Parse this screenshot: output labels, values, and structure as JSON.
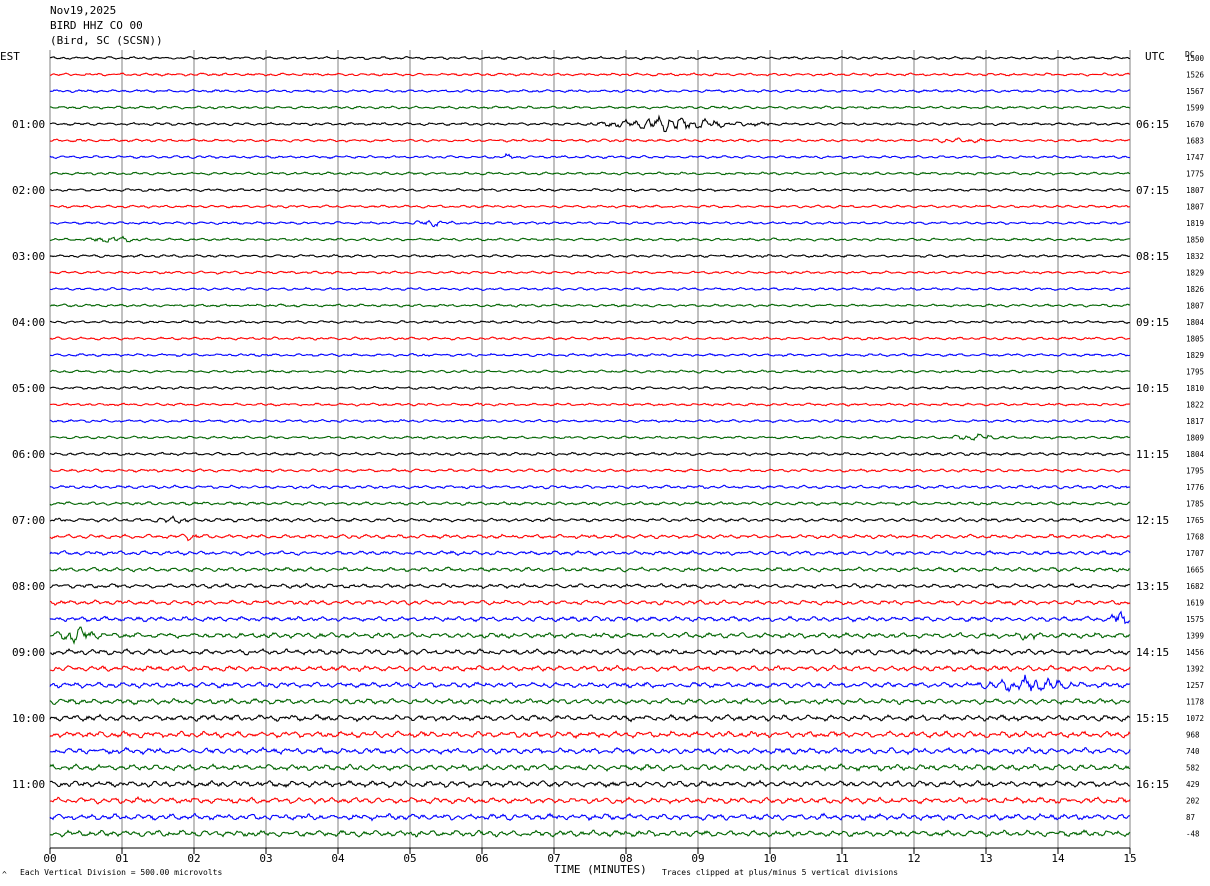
{
  "header": {
    "date": "Nov19,2025",
    "station": "BIRD HHZ CO 00",
    "location": "(Bird, SC (SCSN))"
  },
  "left_axis_label": "EST",
  "right_axis_label": "UTC",
  "dc_label": "DC",
  "footer": {
    "scale_note": "Each Vertical Division =  500.00 microvolts",
    "xlabel": "TIME (MINUTES)",
    "clip_note": "Traces clipped at plus/minus 5 vertical divisions",
    "corner_mark": "^"
  },
  "colors": {
    "trace_cycle": [
      "#000000",
      "#ff0000",
      "#0000ff",
      "#006400"
    ],
    "gridline": "#808080"
  },
  "chart_data": {
    "type": "line",
    "title": "",
    "xlabel": "TIME (MINUTES)",
    "xlim": [
      0,
      15
    ],
    "x_ticks": [
      "00",
      "01",
      "02",
      "03",
      "04",
      "05",
      "06",
      "07",
      "08",
      "09",
      "10",
      "11",
      "12",
      "13",
      "14",
      "15"
    ],
    "left_hour_labels": [
      "01:00",
      "02:00",
      "03:00",
      "04:00",
      "05:00",
      "06:00",
      "07:00",
      "08:00",
      "09:00",
      "10:00",
      "11:00"
    ],
    "right_hour_labels": [
      "06:15",
      "07:15",
      "08:15",
      "09:15",
      "10:15",
      "11:15",
      "12:15",
      "13:15",
      "14:15",
      "15:15",
      "16:15"
    ],
    "trace_count": 48,
    "traces_per_hour": 4,
    "dc_offsets": [
      1500,
      1526,
      1567,
      1599,
      1670,
      1683,
      1747,
      1775,
      1807,
      1807,
      1819,
      1850,
      1832,
      1829,
      1826,
      1807,
      1804,
      1805,
      1829,
      1795,
      1810,
      1822,
      1817,
      1809,
      1804,
      1795,
      1776,
      1785,
      1765,
      1768,
      1707,
      1665,
      1682,
      1619,
      1575,
      1399,
      1456,
      1392,
      1257,
      1178,
      1072,
      968,
      740,
      582,
      429,
      202,
      87,
      -48
    ],
    "noise_level": [
      0.45,
      0.45,
      0.45,
      0.45,
      0.45,
      0.45,
      0.45,
      0.45,
      0.45,
      0.45,
      0.45,
      0.45,
      0.45,
      0.45,
      0.45,
      0.45,
      0.45,
      0.45,
      0.45,
      0.45,
      0.45,
      0.45,
      0.45,
      0.45,
      0.5,
      0.5,
      0.55,
      0.55,
      0.6,
      0.65,
      0.7,
      0.7,
      0.7,
      0.75,
      0.8,
      0.9,
      0.9,
      0.9,
      0.9,
      0.9,
      1.0,
      1.0,
      1.0,
      1.0,
      1.0,
      1.0,
      1.0,
      1.0
    ],
    "events": [
      {
        "trace": 4,
        "start_min": 7.5,
        "end_min": 10.0,
        "peak_amp": 3.0,
        "center_min": 8.6
      },
      {
        "trace": 5,
        "start_min": 11.8,
        "end_min": 13.5,
        "peak_amp": 1.0,
        "center_min": 12.6
      },
      {
        "trace": 6,
        "start_min": 6.2,
        "end_min": 6.5,
        "peak_amp": 1.2,
        "center_min": 6.35
      },
      {
        "trace": 10,
        "start_min": 5.0,
        "end_min": 5.9,
        "peak_amp": 1.5,
        "center_min": 5.3
      },
      {
        "trace": 11,
        "start_min": 0.4,
        "end_min": 1.6,
        "peak_amp": 1.4,
        "center_min": 0.9
      },
      {
        "trace": 21,
        "start_min": 5.9,
        "end_min": 6.2,
        "peak_amp": 1.0,
        "center_min": 6.0
      },
      {
        "trace": 23,
        "start_min": 12.2,
        "end_min": 13.6,
        "peak_amp": 1.4,
        "center_min": 12.9
      },
      {
        "trace": 28,
        "start_min": 1.2,
        "end_min": 2.0,
        "peak_amp": 1.8,
        "center_min": 1.7
      },
      {
        "trace": 29,
        "start_min": 1.7,
        "end_min": 2.2,
        "peak_amp": 1.6,
        "center_min": 1.95
      },
      {
        "trace": 34,
        "start_min": 14.6,
        "end_min": 15.0,
        "peak_amp": 3.5,
        "center_min": 14.85
      },
      {
        "trace": 35,
        "start_min": 0.0,
        "end_min": 1.0,
        "peak_amp": 3.5,
        "center_min": 0.4
      },
      {
        "trace": 35,
        "start_min": 13.3,
        "end_min": 13.8,
        "peak_amp": 2.2,
        "center_min": 13.6
      },
      {
        "trace": 37,
        "start_min": 7.5,
        "end_min": 7.9,
        "peak_amp": 1.2,
        "center_min": 7.7
      },
      {
        "trace": 38,
        "start_min": 12.5,
        "end_min": 14.6,
        "peak_amp": 3.2,
        "center_min": 13.6
      },
      {
        "trace": 42,
        "start_min": 2.8,
        "end_min": 3.6,
        "peak_amp": 1.6,
        "center_min": 3.1
      },
      {
        "trace": 44,
        "start_min": 11.4,
        "end_min": 11.7,
        "peak_amp": 1.4,
        "center_min": 11.55
      }
    ]
  }
}
